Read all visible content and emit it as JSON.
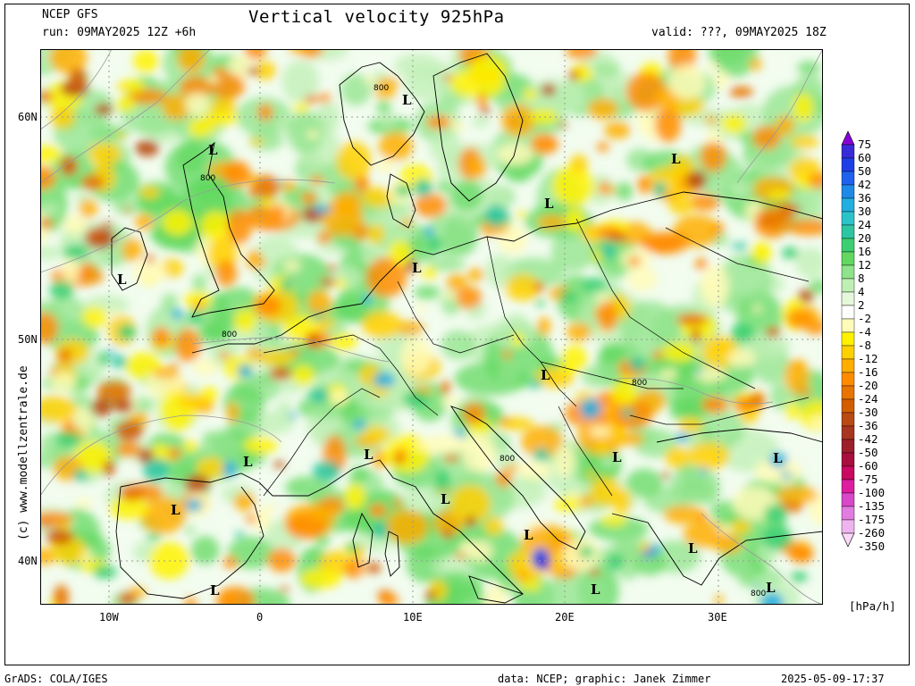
{
  "header": {
    "model": "NCEP GFS",
    "run": "run: 09MAY2025 12Z +6h",
    "title": "Vertical velocity 925hPa",
    "valid": "valid: ???, 09MAY2025 18Z"
  },
  "map": {
    "lon_labels": [
      "10W",
      "0",
      "10E",
      "20E",
      "30E"
    ],
    "lat_labels": [
      "60N",
      "50N",
      "40N"
    ],
    "lows": [
      "L",
      "L",
      "L",
      "L",
      "L",
      "L",
      "L",
      "L",
      "L",
      "L",
      "L",
      "L",
      "L",
      "L",
      "L",
      "L",
      "L",
      "L"
    ],
    "contours": [
      "800",
      "800",
      "800",
      "800",
      "800",
      "800"
    ]
  },
  "side_credit": "(c) www.modellzentrale.de",
  "colorbar": {
    "labels": [
      "75",
      "60",
      "50",
      "42",
      "36",
      "30",
      "24",
      "20",
      "16",
      "12",
      "8",
      "4",
      "2",
      "-2",
      "-4",
      "-8",
      "-12",
      "-16",
      "-20",
      "-24",
      "-30",
      "-36",
      "-42",
      "-50",
      "-60",
      "-75",
      "-100",
      "-135",
      "-175",
      "-260",
      "-350"
    ],
    "colors": [
      "#8a00d8",
      "#3a2bd8",
      "#1f3fe6",
      "#1e62ee",
      "#1e8ae8",
      "#22aee0",
      "#2bc3c8",
      "#2dc6a0",
      "#3ccf72",
      "#62d860",
      "#8fe38a",
      "#bfefb4",
      "#e6f8dc",
      "#ffffff",
      "#fffbb8",
      "#fff200",
      "#ffd000",
      "#ffae00",
      "#ff8c00",
      "#e87400",
      "#d25e00",
      "#b84a12",
      "#a83520",
      "#9c1f2a",
      "#a80f3e",
      "#c80a60",
      "#dd1ea0",
      "#d848c8",
      "#e27ce0",
      "#efb4ef",
      "#fad8f8"
    ],
    "unit": "[hPa/h]"
  },
  "footer": {
    "left": "GrADS: COLA/IGES",
    "mid": "data: NCEP; graphic: Janek Zimmer",
    "right": "2025-05-09-17:37"
  }
}
